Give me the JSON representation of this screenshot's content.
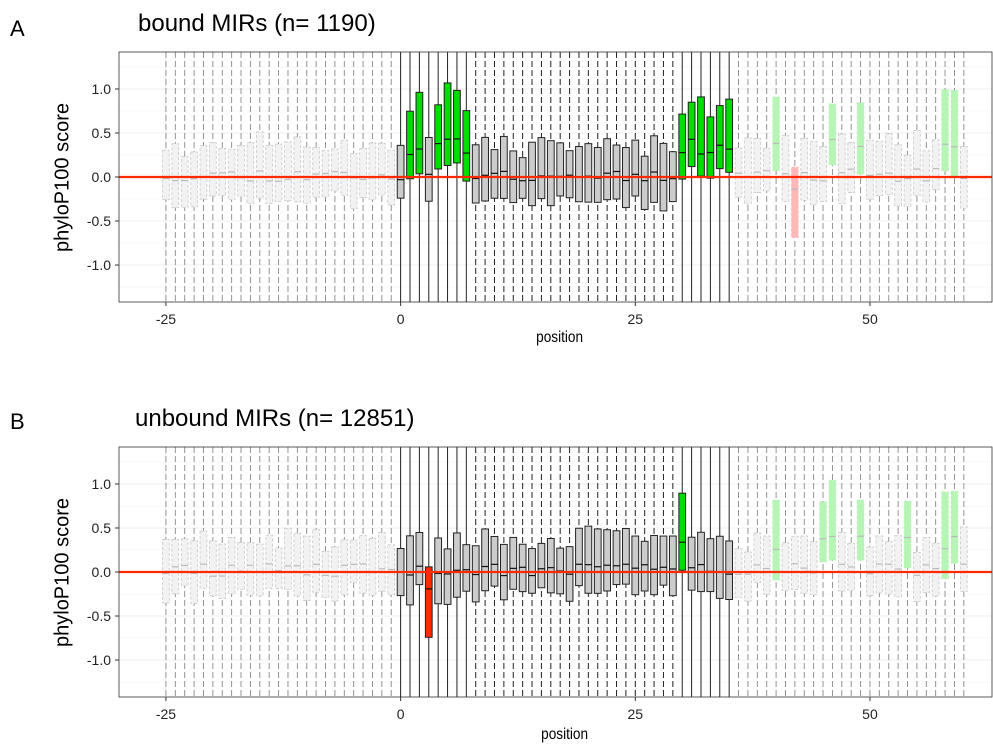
{
  "chart_data": [
    {
      "type": "boxplot",
      "panel_label": "A",
      "title": "bound MIRs (n= 1190)",
      "xlabel": "position",
      "ylabel": "phyloP100 score",
      "xlim": [
        -30,
        63
      ],
      "ylim": [
        -1.42,
        1.42
      ],
      "xticks": [
        -25,
        0,
        25,
        50
      ],
      "yticks": [
        -1.0,
        -0.5,
        0.0,
        0.5,
        1.0
      ],
      "ytick_labels": [
        "-1.0",
        "-0.5",
        "0.0",
        "0.5",
        "1.0"
      ],
      "xtick_labels": [
        "-25",
        "0",
        "25",
        "50"
      ],
      "reference_line": 0.0,
      "reference_color": "#ff2a00",
      "highlight_colors": {
        "up": "#00dd00",
        "down": "#ff2a00",
        "core": "#cccccc",
        "flank": "#eeeeee"
      },
      "core_range": [
        0,
        35
      ],
      "flank_highlights_up": [
        40,
        46,
        49,
        58,
        59
      ],
      "flank_highlights_down": [
        42
      ],
      "core_highlights_up": [
        1,
        2,
        4,
        5,
        6,
        7,
        30,
        31,
        32,
        33,
        34,
        35
      ],
      "core_highlights_down": [],
      "seed": 11
    },
    {
      "type": "boxplot",
      "panel_label": "B",
      "title": "unbound MIRs (n= 12851)",
      "xlabel": "position",
      "ylabel": "phyloP100 score",
      "xlim": [
        -30,
        63
      ],
      "ylim": [
        -1.42,
        1.42
      ],
      "xticks": [
        -25,
        0,
        25,
        50
      ],
      "yticks": [
        -1.0,
        -0.5,
        0.0,
        0.5,
        1.0
      ],
      "ytick_labels": [
        "-1.0",
        "-0.5",
        "0.0",
        "0.5",
        "1.0"
      ],
      "xtick_labels": [
        "-25",
        "0",
        "25",
        "50"
      ],
      "reference_line": 0.0,
      "reference_color": "#ff2a00",
      "highlight_colors": {
        "up": "#00dd00",
        "down": "#ff2a00",
        "core": "#cccccc",
        "flank": "#eeeeee"
      },
      "core_range": [
        0,
        35
      ],
      "flank_highlights_up": [
        40,
        45,
        46,
        49,
        54,
        58,
        59
      ],
      "flank_highlights_down": [],
      "core_highlights_up": [
        30
      ],
      "core_highlights_down": [
        3
      ],
      "seed": 29
    }
  ]
}
